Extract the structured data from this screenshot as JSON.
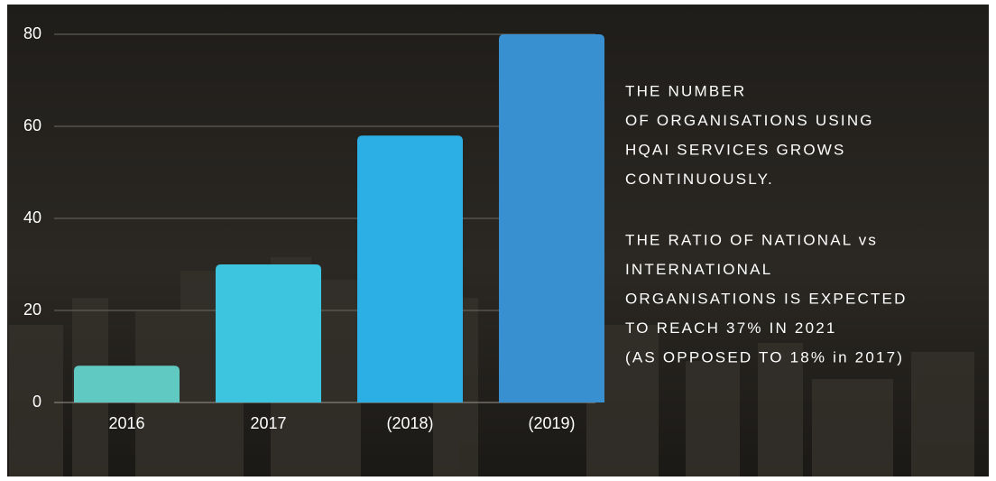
{
  "chart_data": {
    "type": "bar",
    "categories": [
      "2016",
      "2017",
      "(2018)",
      "(2019)"
    ],
    "values": [
      8,
      30,
      58,
      80
    ],
    "colors": [
      "#5fc9c2",
      "#3dc4de",
      "#2bafe4",
      "#3890d0"
    ],
    "ylim": [
      0,
      80
    ],
    "yticks": [
      0,
      20,
      40,
      60,
      80
    ],
    "grid": true
  },
  "text_panel": {
    "paragraphs": [
      [
        "THE NUMBER",
        "OF ORGANISATIONS USING",
        "HQAI SERVICES GROWS",
        "CONTINUOUSLY."
      ],
      [
        "THE RATIO OF NATIONAL vs",
        "INTERNATIONAL",
        "ORGANISATIONS IS EXPECTED",
        "TO REACH 37% IN 2021",
        "(AS OPPOSED TO 18% in 2017)"
      ]
    ]
  }
}
